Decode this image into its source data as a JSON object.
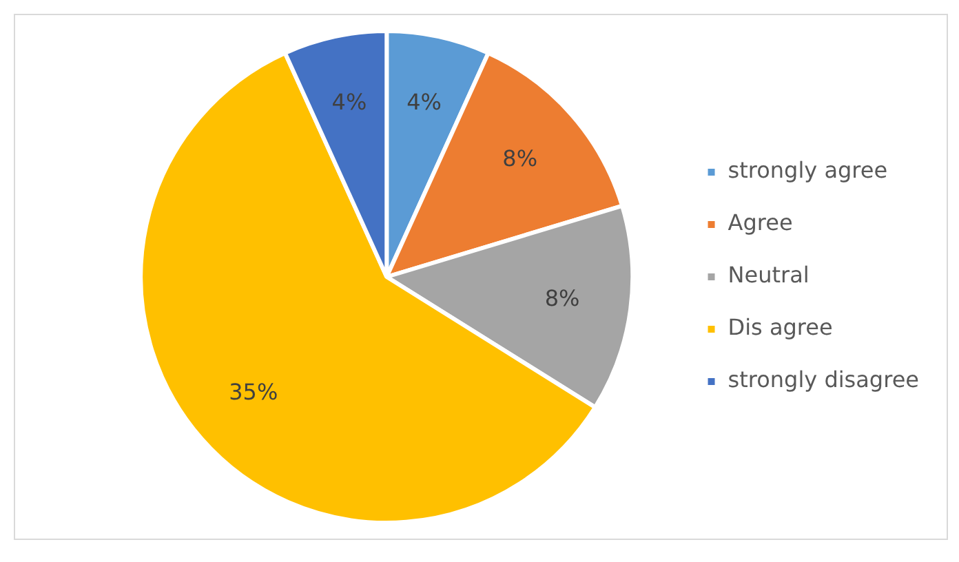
{
  "chart_data": {
    "type": "pie",
    "categories": [
      "strongly agree",
      "Agree",
      "Neutral",
      "Dis agree",
      "strongly disagree"
    ],
    "values": [
      4,
      8,
      8,
      35,
      4
    ],
    "value_labels": [
      "4%",
      "8%",
      "8%",
      "35%",
      "4%"
    ],
    "colors": [
      "#5b9bd5",
      "#ed7d31",
      "#a5a5a5",
      "#ffc000",
      "#4472c4"
    ],
    "legend": "right"
  }
}
